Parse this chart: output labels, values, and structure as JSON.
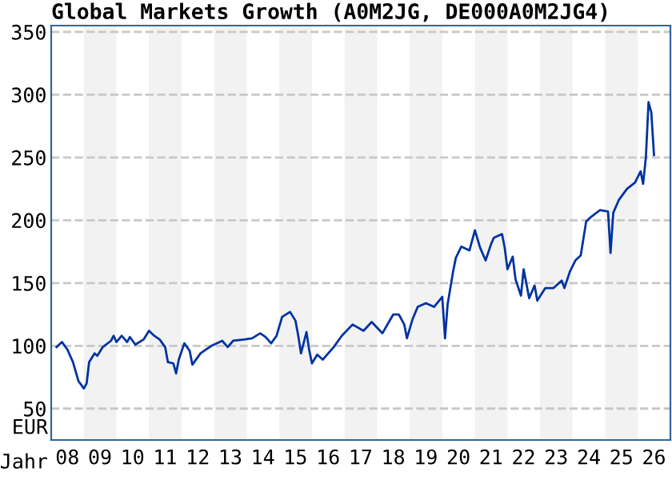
{
  "chart_data": {
    "type": "line",
    "title": "Global Markets Growth (A0M2JG, DE000A0M2JG4)",
    "xlabel": "Jahr",
    "ylabel": "EUR",
    "series": [
      {
        "color": "#0033a0",
        "x": [
          "2008-03",
          "2008-05",
          "2008-07",
          "2008-09",
          "2008-11",
          "2009-01",
          "2009-02",
          "2009-03",
          "2009-05",
          "2009-06",
          "2009-08",
          "2009-11",
          "2009-12",
          "2010-01",
          "2010-03",
          "2010-05",
          "2010-06",
          "2010-08",
          "2010-11",
          "2011-01",
          "2011-03",
          "2011-05",
          "2011-07",
          "2011-08",
          "2011-10",
          "2011-11",
          "2011-12",
          "2012-02",
          "2012-04",
          "2012-05",
          "2012-08",
          "2012-10",
          "2012-12",
          "2013-04",
          "2013-06",
          "2013-08",
          "2013-12",
          "2014-03",
          "2014-06",
          "2014-08",
          "2014-10",
          "2014-12",
          "2015-02",
          "2015-05",
          "2015-07",
          "2015-08",
          "2015-09",
          "2015-11",
          "2015-12",
          "2016-01",
          "2016-03",
          "2016-05",
          "2016-09",
          "2016-12",
          "2017-04",
          "2017-08",
          "2017-11",
          "2018-03",
          "2018-07",
          "2018-09",
          "2018-11",
          "2018-12",
          "2019-02",
          "2019-04",
          "2019-07",
          "2019-10",
          "2020-01",
          "2020-02",
          "2020-03",
          "2020-05",
          "2020-06",
          "2020-08",
          "2020-11",
          "2021-01",
          "2021-03",
          "2021-05",
          "2021-07",
          "2021-08",
          "2021-11",
          "2021-12",
          "2022-01",
          "2022-03",
          "2022-04",
          "2022-06",
          "2022-07",
          "2022-09",
          "2022-11",
          "2022-12",
          "2023-03",
          "2023-06",
          "2023-09",
          "2023-10",
          "2023-12",
          "2024-02",
          "2024-04",
          "2024-06",
          "2024-08",
          "2024-11",
          "2025-02",
          "2025-03",
          "2025-04",
          "2025-06",
          "2025-09",
          "2025-12",
          "2026-02",
          "2026-03",
          "2026-04",
          "2026-05",
          "2026-06",
          "2026-07"
        ],
        "values": [
          99,
          103,
          97,
          87,
          72,
          66,
          70,
          87,
          94,
          92,
          99,
          104,
          108,
          103,
          108,
          103,
          107,
          101,
          105,
          112,
          108,
          105,
          99,
          87,
          86,
          78,
          89,
          102,
          96,
          85,
          94,
          97,
          100,
          104,
          99,
          104,
          105,
          106,
          110,
          107,
          102,
          108,
          123,
          127,
          120,
          108,
          94,
          111,
          97,
          86,
          93,
          89,
          99,
          108,
          117,
          112,
          119,
          110,
          125,
          125,
          117,
          106,
          121,
          131,
          134,
          131,
          139,
          106,
          133,
          159,
          170,
          179,
          176,
          192,
          178,
          168,
          181,
          186,
          189,
          178,
          161,
          171,
          153,
          140,
          161,
          138,
          148,
          136,
          146,
          146,
          152,
          146,
          159,
          168,
          172,
          199,
          203,
          208,
          207,
          174,
          206,
          216,
          225,
          230,
          239,
          229,
          250,
          294,
          286,
          252
        ]
      }
    ],
    "xlim": [
      "2008",
      "2027"
    ],
    "ylim": [
      25,
      355
    ],
    "xticks": [
      {
        "value": "2008-07",
        "label": "08"
      },
      {
        "value": "2009-07",
        "label": "09"
      },
      {
        "value": "2010-07",
        "label": "10"
      },
      {
        "value": "2011-07",
        "label": "11"
      },
      {
        "value": "2012-07",
        "label": "12"
      },
      {
        "value": "2013-07",
        "label": "13"
      },
      {
        "value": "2014-07",
        "label": "14"
      },
      {
        "value": "2015-07",
        "label": "15"
      },
      {
        "value": "2016-07",
        "label": "16"
      },
      {
        "value": "2017-07",
        "label": "17"
      },
      {
        "value": "2018-07",
        "label": "18"
      },
      {
        "value": "2019-07",
        "label": "19"
      },
      {
        "value": "2020-07",
        "label": "20"
      },
      {
        "value": "2021-07",
        "label": "21"
      },
      {
        "value": "2022-07",
        "label": "22"
      },
      {
        "value": "2023-07",
        "label": "23"
      },
      {
        "value": "2024-07",
        "label": "24"
      },
      {
        "value": "2025-07",
        "label": "25"
      },
      {
        "value": "2026-07",
        "label": "26"
      }
    ],
    "yticks": [
      50,
      100,
      150,
      200,
      250,
      300,
      350
    ],
    "bands": [
      {
        "axis": "x",
        "from": "2009",
        "to": "2010",
        "color": "#f2f2f2"
      },
      {
        "axis": "x",
        "from": "2011",
        "to": "2012",
        "color": "#f2f2f2"
      },
      {
        "axis": "x",
        "from": "2013",
        "to": "2014",
        "color": "#f2f2f2"
      },
      {
        "axis": "x",
        "from": "2015",
        "to": "2016",
        "color": "#f2f2f2"
      },
      {
        "axis": "x",
        "from": "2017",
        "to": "2018",
        "color": "#f2f2f2"
      },
      {
        "axis": "x",
        "from": "2019",
        "to": "2020",
        "color": "#f2f2f2"
      },
      {
        "axis": "x",
        "from": "2021",
        "to": "2022",
        "color": "#f2f2f2"
      },
      {
        "axis": "x",
        "from": "2023",
        "to": "2024",
        "color": "#f2f2f2"
      },
      {
        "axis": "x",
        "from": "2025",
        "to": "2026",
        "color": "#f2f2f2"
      }
    ],
    "grid": "y",
    "marker": "none",
    "line_style": "solid"
  }
}
